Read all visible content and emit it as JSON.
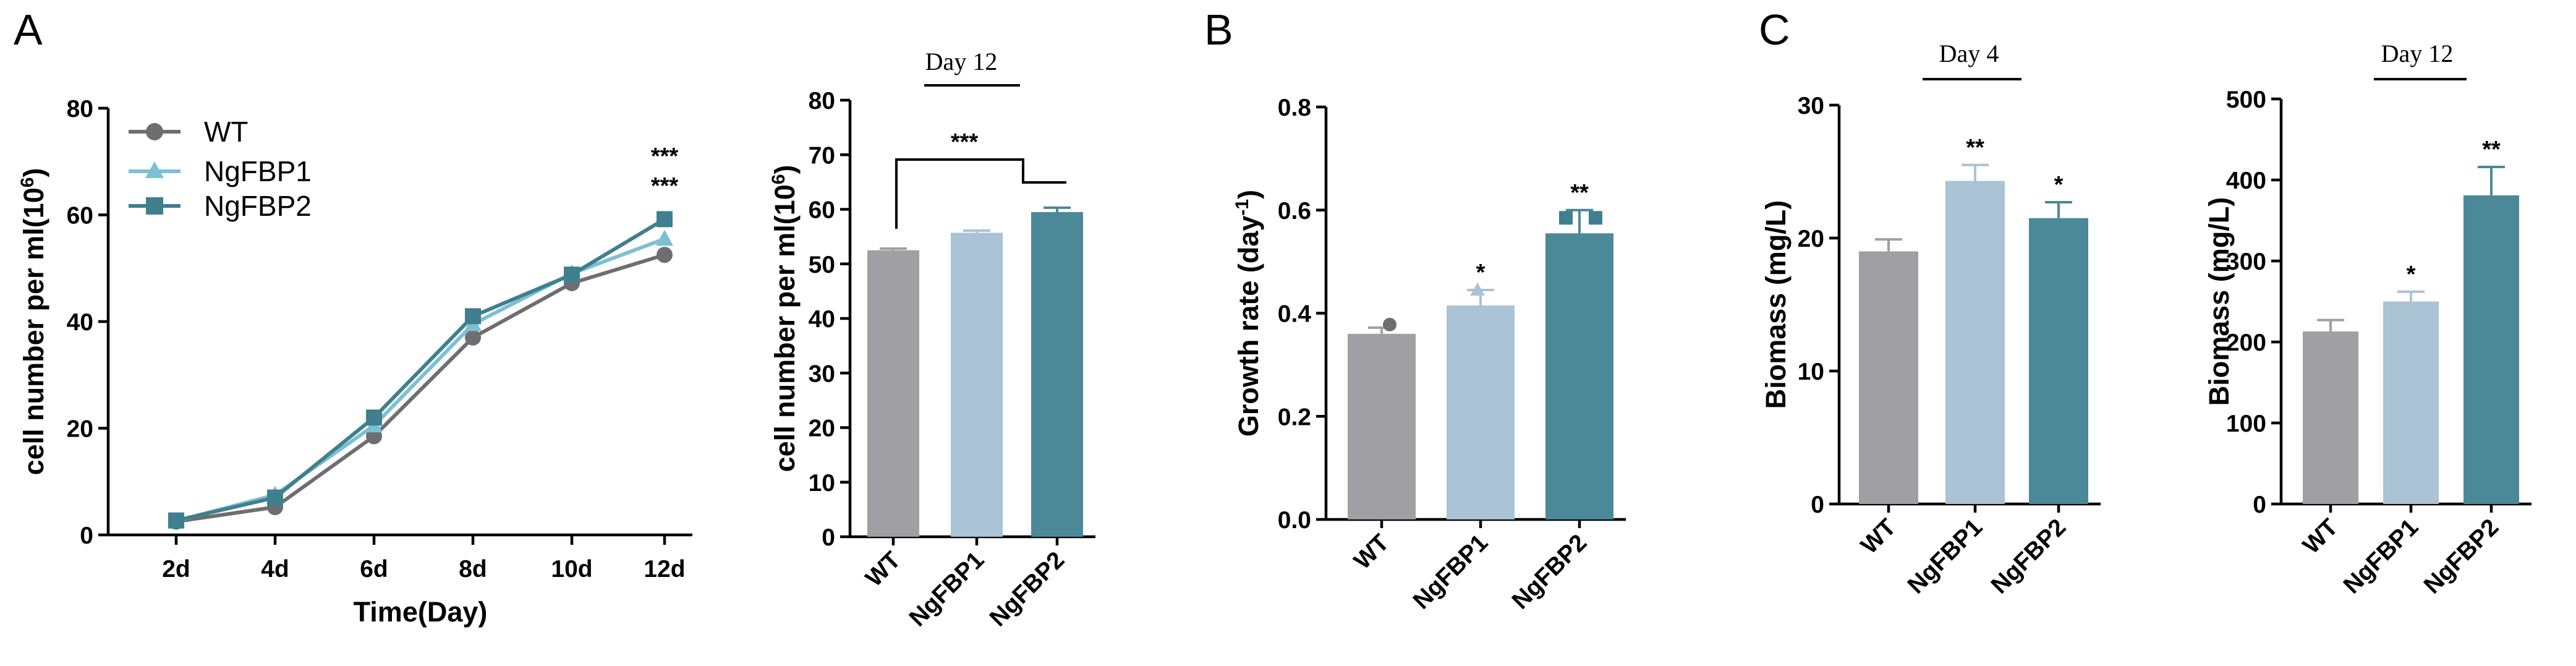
{
  "panels": {
    "A": "A",
    "B": "B",
    "C": "C"
  },
  "colors": {
    "WT": "#a09fa3",
    "NgFBP1": "#aac3d5",
    "NgFBP2": "#4b8898",
    "line_WT": "#6e6e72",
    "line_NgFBP1": "#7cc0d4",
    "line_NgFBP2": "#3f7f8e"
  },
  "chart_data": [
    {
      "id": "growth_curve",
      "type": "line",
      "title": "",
      "xlabel": "Time(Day)",
      "ylabel": "cell number per ml(10",
      "ylabel_sup": "6",
      "ylabel_close": ")",
      "categories": [
        "2d",
        "4d",
        "6d",
        "8d",
        "10d",
        "12d"
      ],
      "ylim": [
        0,
        80
      ],
      "yticks": [
        "0",
        "20",
        "40",
        "60",
        "80"
      ],
      "series": [
        {
          "name": "WT",
          "values": [
            2.5,
            5.2,
            18.5,
            37,
            47.2,
            52.5
          ],
          "marker": "circle"
        },
        {
          "name": "NgFBP1",
          "values": [
            2.6,
            7.5,
            20.5,
            39.5,
            49,
            55.5
          ],
          "marker": "triangle"
        },
        {
          "name": "NgFBP2",
          "values": [
            2.7,
            7.0,
            22,
            41,
            48.8,
            59.2
          ],
          "marker": "square"
        }
      ],
      "annotations": [
        "***",
        "***"
      ]
    },
    {
      "id": "day12_cell_number",
      "type": "bar",
      "title": "Day 12",
      "xlabel": "",
      "ylabel": "cell number per ml(10",
      "ylabel_sup": "6",
      "ylabel_close": ")",
      "categories": [
        "WT",
        "NgFBP1",
        "NgFBP2"
      ],
      "values": [
        52.5,
        55.7,
        59.5
      ],
      "errors": [
        0.3,
        0.4,
        0.8
      ],
      "ylim": [
        0,
        80
      ],
      "yticks": [
        "0",
        "10",
        "20",
        "30",
        "40",
        "50",
        "60",
        "70",
        "80"
      ],
      "significance": [
        "",
        "",
        ""
      ],
      "bracket_label": "***"
    },
    {
      "id": "growth_rate",
      "type": "bar",
      "title": "",
      "xlabel": "",
      "ylabel": "Growth rate (day",
      "ylabel_sup": "-1",
      "ylabel_close": ")",
      "categories": [
        "WT",
        "NgFBP1",
        "NgFBP2"
      ],
      "values": [
        0.36,
        0.415,
        0.555
      ],
      "errors": [
        0.012,
        0.03,
        0.045
      ],
      "ylim": [
        0,
        0.8
      ],
      "yticks": [
        "0.0",
        "0.2",
        "0.4",
        "0.6",
        "0.8"
      ],
      "significance": [
        "",
        "*",
        "**"
      ]
    },
    {
      "id": "biomass_day4",
      "type": "bar",
      "title": "Day 4",
      "xlabel": "",
      "ylabel": "Biomass (mg/L)",
      "categories": [
        "WT",
        "NgFBP1",
        "NgFBP2"
      ],
      "values": [
        19,
        24.3,
        21.5
      ],
      "errors": [
        0.9,
        1.2,
        1.2
      ],
      "ylim": [
        0,
        30
      ],
      "yticks": [
        "0",
        "10",
        "20",
        "30"
      ],
      "significance": [
        "",
        "**",
        "*"
      ]
    },
    {
      "id": "biomass_day12",
      "type": "bar",
      "title": "Day 12",
      "xlabel": "",
      "ylabel": "Biomass (mg/L)",
      "categories": [
        "WT",
        "NgFBP1",
        "NgFBP2"
      ],
      "values": [
        213,
        250,
        381
      ],
      "errors": [
        14,
        12,
        35
      ],
      "ylim": [
        0,
        500
      ],
      "yticks": [
        "0",
        "100",
        "200",
        "300",
        "400",
        "500"
      ],
      "significance": [
        "",
        "*",
        "**"
      ]
    }
  ]
}
